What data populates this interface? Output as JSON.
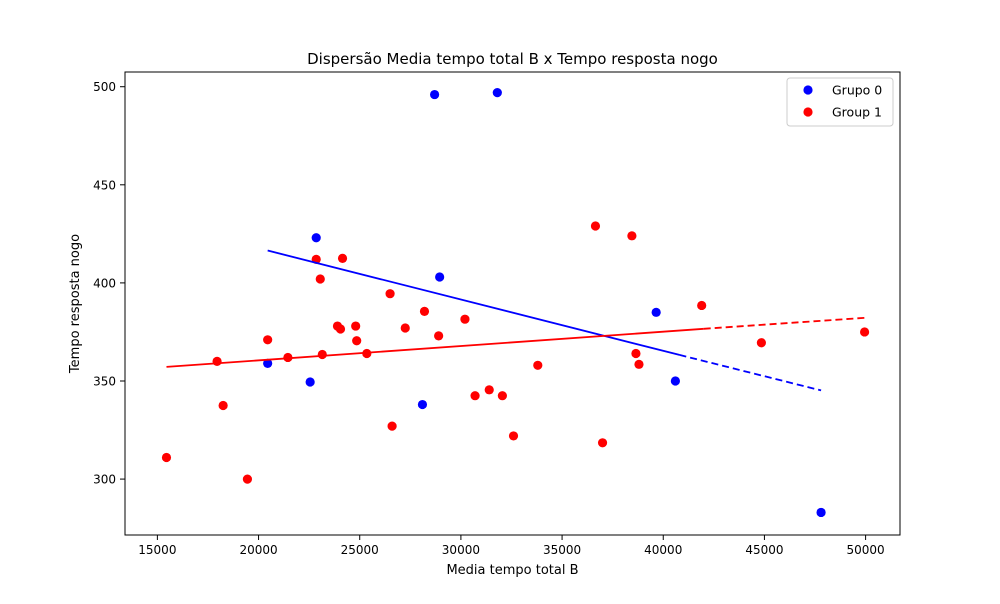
{
  "chart_data": {
    "type": "scatter",
    "title": "Dispersão Media tempo total B x Tempo resposta nogo",
    "xlabel": "Media tempo total B",
    "ylabel": "Tempo resposta nogo",
    "xlim": [
      13400,
      51700
    ],
    "ylim": [
      271.5,
      507.5
    ],
    "xticks": [
      15000,
      20000,
      25000,
      30000,
      35000,
      40000,
      45000,
      50000
    ],
    "yticks": [
      300,
      350,
      400,
      450,
      500
    ],
    "grid": false,
    "legend_position": "top-right",
    "series": [
      {
        "name": "Grupo 0",
        "color": "#0000ff",
        "points": [
          [
            20450,
            359
          ],
          [
            22550,
            349.5
          ],
          [
            22850,
            423
          ],
          [
            28100,
            338
          ],
          [
            28700,
            496
          ],
          [
            28950,
            403
          ],
          [
            31800,
            497
          ],
          [
            39650,
            385
          ],
          [
            40600,
            350
          ],
          [
            47800,
            283
          ]
        ]
      },
      {
        "name": "Group 1",
        "color": "#ff0000",
        "points": [
          [
            15450,
            311
          ],
          [
            17950,
            360
          ],
          [
            18250,
            337.5
          ],
          [
            19450,
            300
          ],
          [
            20450,
            371
          ],
          [
            21450,
            362
          ],
          [
            22850,
            412
          ],
          [
            23050,
            402
          ],
          [
            23150,
            363.5
          ],
          [
            23900,
            378
          ],
          [
            24050,
            376.5
          ],
          [
            24150,
            412.5
          ],
          [
            24800,
            378
          ],
          [
            24850,
            370.5
          ],
          [
            25350,
            364
          ],
          [
            26500,
            394.5
          ],
          [
            26600,
            327
          ],
          [
            27250,
            377
          ],
          [
            28200,
            385.5
          ],
          [
            28900,
            373
          ],
          [
            30200,
            381.5
          ],
          [
            30700,
            342.5
          ],
          [
            31400,
            345.5
          ],
          [
            32050,
            342.5
          ],
          [
            32600,
            322
          ],
          [
            33800,
            358
          ],
          [
            36650,
            429
          ],
          [
            37000,
            318.5
          ],
          [
            38450,
            424
          ],
          [
            38650,
            364
          ],
          [
            38800,
            358.5
          ],
          [
            41900,
            388.5
          ],
          [
            44850,
            369.5
          ],
          [
            49950,
            375
          ]
        ]
      }
    ],
    "trendlines": [
      {
        "series": "Grupo 0",
        "color": "#0000ff",
        "solid": [
          [
            20450,
            416.5
          ],
          [
            40800,
            363.3
          ]
        ],
        "dashed": [
          [
            40800,
            363.3
          ],
          [
            47800,
            345.2
          ]
        ]
      },
      {
        "series": "Group 1",
        "color": "#ff0000",
        "solid": [
          [
            15450,
            357.2
          ],
          [
            42000,
            376.6
          ]
        ],
        "dashed": [
          [
            42000,
            376.6
          ],
          [
            49950,
            382.2
          ]
        ]
      }
    ]
  }
}
